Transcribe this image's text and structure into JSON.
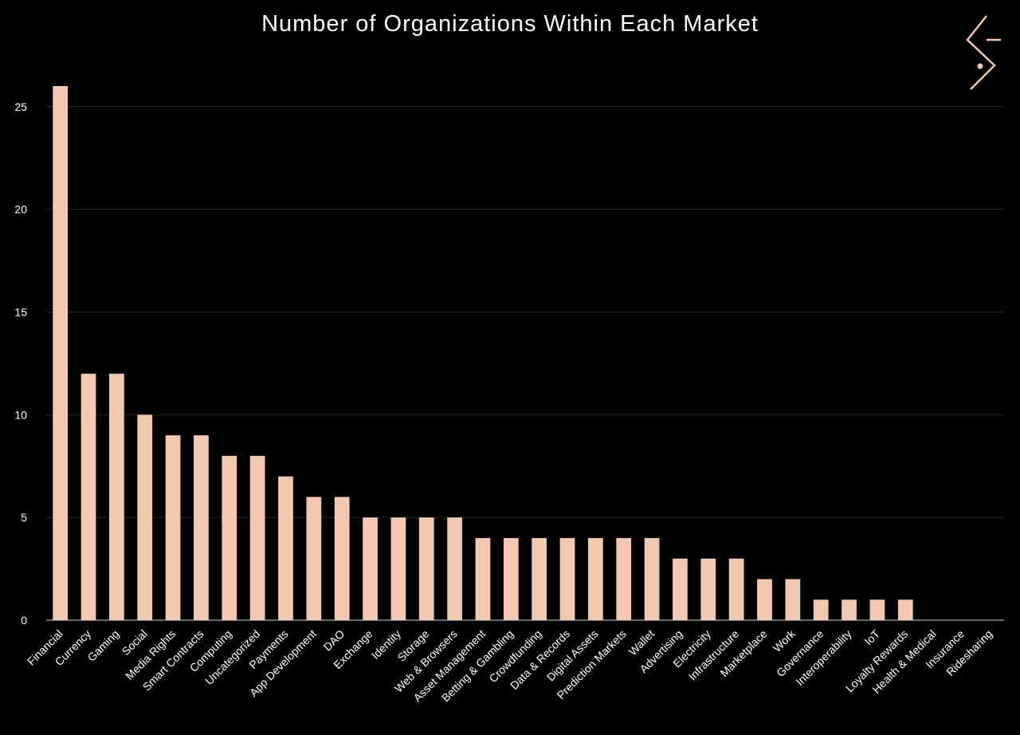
{
  "colors": {
    "background": "#000000",
    "bar": "#f2c9b0",
    "grid": "#2a2a2a",
    "axis": "#cfcfcf",
    "text": "#ffffff",
    "logo": "#f2c9b0"
  },
  "logo": {
    "icon": "brand-logo-icon"
  },
  "chart_data": {
    "type": "bar",
    "title": "Number of Organizations Within Each Market",
    "xlabel": "",
    "ylabel": "",
    "ylim": [
      0,
      26
    ],
    "yticks": [
      0,
      5,
      10,
      15,
      20,
      25
    ],
    "grid": true,
    "categories": [
      "Financial",
      "Currency",
      "Gaming",
      "Social",
      "Media Rights",
      "Smart Contracts",
      "Computing",
      "Uncategorized",
      "Payments",
      "App Development",
      "DAO",
      "Exchange",
      "Identity",
      "Storage",
      "Web & Browsers",
      "Asset Management",
      "Betting & Gambling",
      "Crowdfunding",
      "Data & Records",
      "Digital Assets",
      "Prediction Markets",
      "Wallet",
      "Advertising",
      "Electricity",
      "Infrastructure",
      "Marketplace",
      "Work",
      "Governance",
      "Interoperability",
      "IoT",
      "Loyalty Rewards",
      "Health & Medical",
      "Insurance",
      "Ridesharing"
    ],
    "values": [
      26,
      12,
      12,
      10,
      9,
      9,
      8,
      8,
      7,
      6,
      6,
      5,
      5,
      5,
      5,
      4,
      4,
      4,
      4,
      4,
      4,
      4,
      3,
      3,
      3,
      2,
      2,
      1,
      1,
      1,
      1,
      0,
      0,
      0
    ]
  }
}
